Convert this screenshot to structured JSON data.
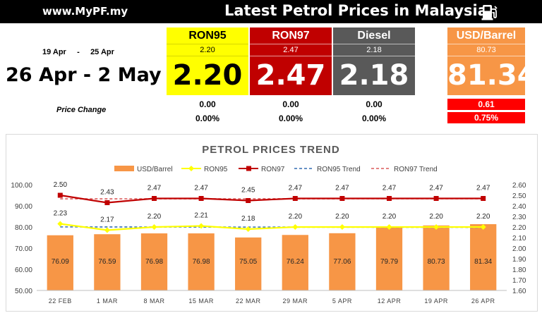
{
  "header": {
    "site": "www.MyPF.my",
    "title": "Latest Petrol Prices in Malaysia"
  },
  "summary": {
    "prev_from": "19 Apr",
    "prev_sep": "-",
    "prev_to": "25 Apr",
    "current_range": "26 Apr - 2 May",
    "price_change_label": "Price Change"
  },
  "columns": [
    {
      "name": "RON95",
      "prev": "2.20",
      "current": "2.20",
      "change": "0.00",
      "change_pct": "0.00%",
      "color": "#ffff00"
    },
    {
      "name": "RON97",
      "prev": "2.47",
      "current": "2.47",
      "change": "0.00",
      "change_pct": "0.00%",
      "color": "#c00000"
    },
    {
      "name": "Diesel",
      "prev": "2.18",
      "current": "2.18",
      "change": "0.00",
      "change_pct": "0.00%",
      "color": "#595959"
    },
    {
      "name": "USD/Barrel",
      "prev": "80.73",
      "current": "81.34",
      "change": "0.61",
      "change_pct": "0.75%",
      "color": "#f79646"
    }
  ],
  "chart_data": {
    "type": "bar",
    "title": "PETROL PRICES TREND",
    "categories": [
      "22 FEB",
      "1 MAR",
      "8 MAR",
      "15 MAR",
      "22 MAR",
      "29 MAR",
      "5 APR",
      "12 APR",
      "19 APR",
      "26 APR"
    ],
    "series": [
      {
        "name": "USD/Barrel",
        "type": "bar",
        "axis": "left",
        "color": "#f79646",
        "values": [
          76.09,
          76.59,
          76.98,
          76.98,
          75.05,
          76.24,
          77.06,
          79.79,
          80.73,
          81.34
        ]
      },
      {
        "name": "RON95",
        "type": "line",
        "axis": "right",
        "color": "#ffff00",
        "values": [
          2.23,
          2.17,
          2.2,
          2.21,
          2.18,
          2.2,
          2.2,
          2.2,
          2.2,
          2.2
        ]
      },
      {
        "name": "RON97",
        "type": "line",
        "axis": "right",
        "color": "#c00000",
        "values": [
          2.5,
          2.43,
          2.47,
          2.47,
          2.45,
          2.47,
          2.47,
          2.47,
          2.47,
          2.47
        ]
      },
      {
        "name": "RON95 Trend",
        "type": "trend",
        "axis": "right",
        "color": "#4f81bd"
      },
      {
        "name": "RON97 Trend",
        "type": "trend",
        "axis": "right",
        "color": "#e07070"
      }
    ],
    "y_left": {
      "min": 50,
      "max": 100,
      "ticks": [
        "50.00",
        "60.00",
        "70.00",
        "80.00",
        "90.00",
        "100.00"
      ]
    },
    "y_right": {
      "min": 1.6,
      "max": 2.6,
      "ticks": [
        "1.60",
        "1.70",
        "1.80",
        "1.90",
        "2.00",
        "2.10",
        "2.20",
        "2.30",
        "2.40",
        "2.50",
        "2.60"
      ]
    },
    "legend_position": "top",
    "grid": false
  }
}
